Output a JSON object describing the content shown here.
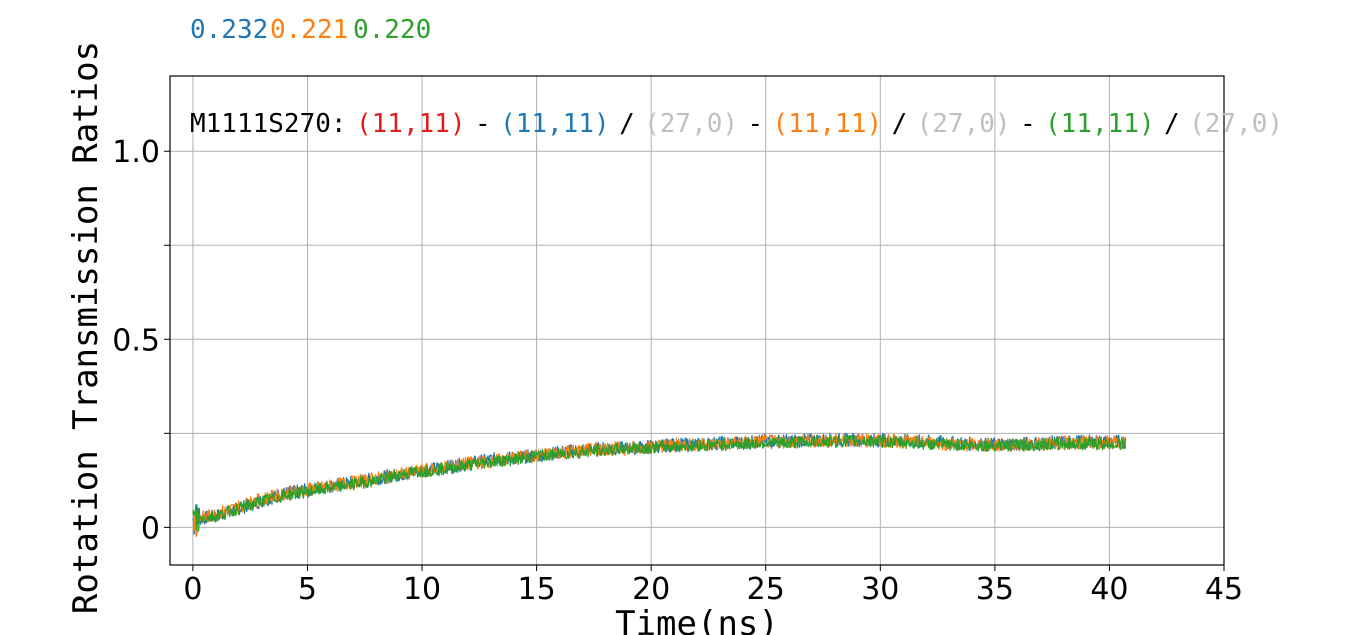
{
  "top_values": [
    {
      "text": "0.232",
      "color": "#1f77b4"
    },
    {
      "text": "0.221",
      "color": "#ff7f0e"
    },
    {
      "text": "0.220",
      "color": "#2ca02c"
    }
  ],
  "annotation": [
    {
      "text": "M1111S270:",
      "color": "#000000"
    },
    {
      "text": "(11,11)",
      "color": "#e41a1c"
    },
    {
      "text": "-",
      "color": "#000000"
    },
    {
      "text": "(11,11)",
      "color": "#1f77b4"
    },
    {
      "text": "/",
      "color": "#000000"
    },
    {
      "text": "(27,0)",
      "color": "#c0c0c0"
    },
    {
      "text": "-",
      "color": "#000000"
    },
    {
      "text": "(11,11)",
      "color": "#ff7f0e"
    },
    {
      "text": "/",
      "color": "#000000"
    },
    {
      "text": "(27,0)",
      "color": "#c0c0c0"
    },
    {
      "text": "-",
      "color": "#000000"
    },
    {
      "text": "(11,11)",
      "color": "#2ca02c"
    },
    {
      "text": "/",
      "color": "#000000"
    },
    {
      "text": "(27,0)",
      "color": "#c0c0c0"
    }
  ],
  "chart_data": {
    "type": "line",
    "title": "",
    "xlabel": "Time(ns)",
    "ylabel": "Rotation Transmission Ratios",
    "xlim": [
      -1,
      45
    ],
    "ylim": [
      -0.1,
      1.2
    ],
    "xticks": [
      0,
      5,
      10,
      15,
      20,
      25,
      30,
      35,
      40,
      45
    ],
    "xtick_labels": [
      "0",
      "5",
      "10",
      "15",
      "20",
      "25",
      "30",
      "35",
      "40",
      "45"
    ],
    "yticks": [
      0,
      0.5,
      1.0
    ],
    "ytick_labels": [
      "0",
      "0.5",
      "1.0"
    ],
    "minor_yticks": [
      0.25,
      0.75
    ],
    "grid": true,
    "series": [
      {
        "color": "#1f77b4",
        "x": [
          0,
          1,
          2,
          3,
          4,
          5,
          6,
          7,
          8,
          9,
          10,
          11,
          12,
          13,
          14,
          15,
          16,
          17,
          18,
          19,
          20,
          21,
          22,
          23,
          24,
          25,
          26,
          27,
          28,
          29,
          30,
          31,
          32,
          33,
          34,
          35,
          36,
          37,
          38,
          39,
          40,
          40.7
        ],
        "y": [
          0.02,
          0.03,
          0.05,
          0.07,
          0.09,
          0.1,
          0.11,
          0.12,
          0.13,
          0.14,
          0.15,
          0.16,
          0.17,
          0.18,
          0.185,
          0.19,
          0.2,
          0.205,
          0.21,
          0.21,
          0.215,
          0.22,
          0.22,
          0.225,
          0.225,
          0.23,
          0.23,
          0.232,
          0.232,
          0.233,
          0.232,
          0.23,
          0.228,
          0.225,
          0.222,
          0.22,
          0.222,
          0.225,
          0.227,
          0.228,
          0.228,
          0.228
        ],
        "band": 0.018
      },
      {
        "color": "#ff7f0e",
        "x": [
          0,
          1,
          2,
          3,
          4,
          5,
          6,
          7,
          8,
          9,
          10,
          11,
          12,
          13,
          14,
          15,
          16,
          17,
          18,
          19,
          20,
          21,
          22,
          23,
          24,
          25,
          26,
          27,
          28,
          29,
          30,
          31,
          32,
          33,
          34,
          35,
          36,
          37,
          38,
          39,
          40,
          40.7
        ],
        "y": [
          0.02,
          0.035,
          0.055,
          0.075,
          0.09,
          0.1,
          0.11,
          0.12,
          0.13,
          0.14,
          0.15,
          0.16,
          0.17,
          0.175,
          0.185,
          0.19,
          0.2,
          0.205,
          0.21,
          0.21,
          0.215,
          0.22,
          0.22,
          0.222,
          0.225,
          0.228,
          0.228,
          0.23,
          0.23,
          0.232,
          0.23,
          0.228,
          0.225,
          0.222,
          0.22,
          0.218,
          0.22,
          0.222,
          0.225,
          0.225,
          0.225,
          0.225
        ],
        "band": 0.018
      },
      {
        "color": "#2ca02c",
        "x": [
          0,
          1,
          2,
          3,
          4,
          5,
          6,
          7,
          8,
          9,
          10,
          11,
          12,
          13,
          14,
          15,
          16,
          17,
          18,
          19,
          20,
          21,
          22,
          23,
          24,
          25,
          26,
          27,
          28,
          29,
          30,
          31,
          32,
          33,
          34,
          35,
          36,
          37,
          38,
          39,
          40,
          40.7
        ],
        "y": [
          0.02,
          0.03,
          0.05,
          0.07,
          0.085,
          0.095,
          0.105,
          0.115,
          0.125,
          0.14,
          0.15,
          0.155,
          0.165,
          0.175,
          0.18,
          0.19,
          0.195,
          0.2,
          0.205,
          0.21,
          0.212,
          0.215,
          0.218,
          0.22,
          0.222,
          0.225,
          0.225,
          0.228,
          0.228,
          0.23,
          0.228,
          0.226,
          0.222,
          0.22,
          0.218,
          0.218,
          0.218,
          0.22,
          0.222,
          0.222,
          0.222,
          0.222
        ],
        "band": 0.016
      }
    ]
  }
}
